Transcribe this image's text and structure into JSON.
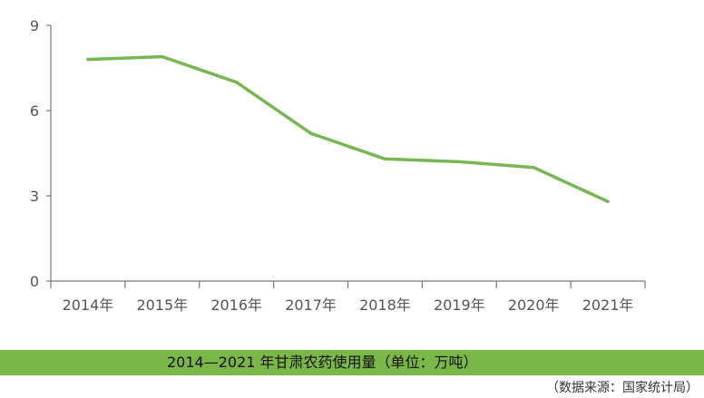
{
  "chart_data": {
    "type": "line",
    "categories": [
      "2014年",
      "2015年",
      "2016年",
      "2017年",
      "2018年",
      "2019年",
      "2020年",
      "2021年"
    ],
    "series": [
      {
        "values": [
          7.8,
          7.9,
          7.0,
          5.2,
          4.3,
          4.2,
          4.0,
          2.8
        ]
      }
    ],
    "ylim": [
      0,
      9
    ],
    "yticks": [
      "0",
      "3",
      "6",
      "9"
    ],
    "line_color": "#77b653",
    "grid": false
  },
  "caption": "2014—2021 年甘肃农药使用量（单位：万吨）",
  "source": "（数据来源：国家统计局）",
  "colors": {
    "band": "#7ab648",
    "axis": "#777777"
  }
}
